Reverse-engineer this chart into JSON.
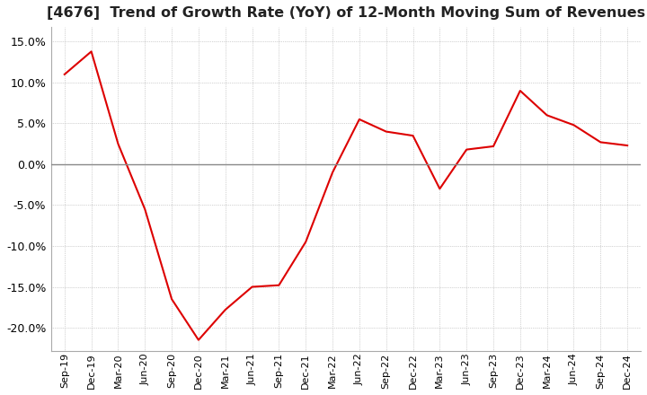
{
  "title": "[4676]  Trend of Growth Rate (YoY) of 12-Month Moving Sum of Revenues",
  "title_fontsize": 11.5,
  "line_color": "#dd0000",
  "background_color": "#ffffff",
  "grid_color": "#aaaaaa",
  "zero_line_color": "#888888",
  "ylim": [
    -0.228,
    0.168
  ],
  "yticks": [
    -0.2,
    -0.15,
    -0.1,
    -0.05,
    0.0,
    0.05,
    0.1,
    0.15
  ],
  "x_labels": [
    "Sep-19",
    "Dec-19",
    "Mar-20",
    "Jun-20",
    "Sep-20",
    "Dec-20",
    "Mar-21",
    "Jun-21",
    "Sep-21",
    "Dec-21",
    "Mar-22",
    "Jun-22",
    "Sep-22",
    "Dec-22",
    "Mar-23",
    "Jun-23",
    "Sep-23",
    "Dec-23",
    "Mar-24",
    "Jun-24",
    "Sep-24",
    "Dec-24"
  ],
  "values": [
    0.11,
    0.138,
    0.025,
    -0.055,
    -0.165,
    -0.215,
    -0.178,
    -0.15,
    -0.148,
    -0.095,
    -0.01,
    0.055,
    0.04,
    0.035,
    -0.03,
    0.018,
    0.022,
    0.09,
    0.06,
    0.048,
    0.027,
    0.023
  ]
}
